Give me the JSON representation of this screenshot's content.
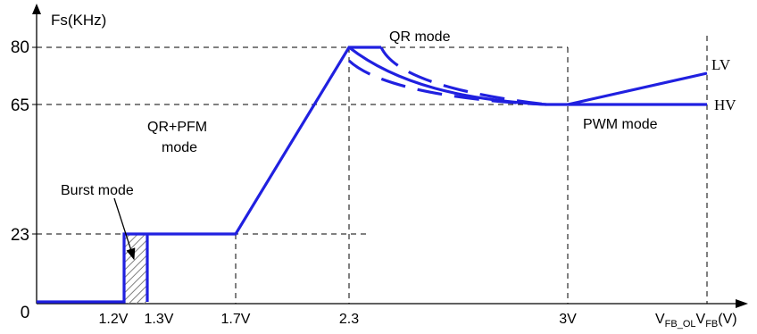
{
  "y_axis": {
    "label": "Fs(KHz)",
    "ticks": [
      "80",
      "65",
      "23"
    ],
    "origin": "0"
  },
  "x_axis": {
    "ticks": [
      "1.2V",
      "1.3V",
      "1.7V",
      "2.3",
      "3V"
    ],
    "label_main": "V",
    "label_sub1": "FB_OL",
    "label_mid": "V",
    "label_sub2": "FB",
    "label_unit": "(V)"
  },
  "annotations": {
    "qr_mode": "QR mode",
    "qr_pfm_line1": "QR+PFM",
    "qr_pfm_line2": "mode",
    "burst_mode": "Burst mode",
    "pwm_mode": "PWM mode",
    "lv": "LV",
    "hv": "HV"
  },
  "colors": {
    "curve": "#2020e0",
    "axis": "#000000",
    "hatch": "#7f7f7f"
  }
}
